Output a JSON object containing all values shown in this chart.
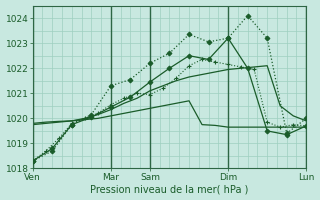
{
  "bg_color": "#c8e8e0",
  "grid_color": "#9ecfbf",
  "line_color": "#1a5c2a",
  "xlabel": "Pression niveau de la mer( hPa )",
  "ylim": [
    1018,
    1024.5
  ],
  "yticks": [
    1018,
    1019,
    1020,
    1021,
    1022,
    1023,
    1024
  ],
  "xtick_labels": [
    "Ven",
    "Mar",
    "Sam",
    "Dim",
    "Lun"
  ],
  "xtick_positions": [
    0,
    24,
    36,
    60,
    84
  ],
  "day_vlines": [
    24,
    36,
    60,
    84
  ],
  "s1_x": [
    0,
    4,
    8,
    12,
    16,
    20,
    24,
    28,
    32,
    36,
    40,
    44,
    48,
    52,
    56,
    60,
    64,
    68,
    72,
    76,
    80,
    84
  ],
  "s1_y": [
    1018.3,
    1018.7,
    1019.2,
    1019.8,
    1020.0,
    1020.2,
    1020.55,
    1020.8,
    1021.0,
    1020.95,
    1021.2,
    1021.6,
    1022.1,
    1022.35,
    1022.25,
    1022.15,
    1022.05,
    1021.95,
    1019.85,
    1019.65,
    1019.75,
    1019.7
  ],
  "s2_x": [
    0,
    4,
    8,
    12,
    16,
    20,
    24,
    28,
    32,
    36,
    40,
    44,
    48,
    52,
    56,
    60,
    64,
    68,
    72,
    76,
    80,
    84
  ],
  "s2_y": [
    1019.75,
    1019.8,
    1019.85,
    1019.9,
    1019.95,
    1020.0,
    1020.1,
    1020.2,
    1020.3,
    1020.4,
    1020.5,
    1020.6,
    1020.7,
    1019.75,
    1019.72,
    1019.65,
    1019.65,
    1019.65,
    1019.65,
    1019.65,
    1019.65,
    1019.65
  ],
  "s3_x": [
    0,
    4,
    8,
    12,
    16,
    20,
    24,
    28,
    32,
    36,
    40,
    44,
    48,
    52,
    56,
    60,
    64,
    68,
    72,
    76,
    80,
    84
  ],
  "s3_y": [
    1019.8,
    1019.85,
    1019.88,
    1019.9,
    1020.0,
    1020.15,
    1020.35,
    1020.6,
    1020.8,
    1021.1,
    1021.3,
    1021.5,
    1021.65,
    1021.75,
    1021.85,
    1021.95,
    1022.0,
    1022.05,
    1022.1,
    1020.5,
    1020.1,
    1019.9
  ],
  "s4_x": [
    0,
    6,
    12,
    18,
    24,
    30,
    36,
    42,
    48,
    54,
    60,
    66,
    72,
    78,
    84
  ],
  "s4_y": [
    1018.3,
    1018.8,
    1019.75,
    1020.05,
    1020.45,
    1020.85,
    1021.45,
    1022.0,
    1022.5,
    1022.35,
    1023.2,
    1022.0,
    1019.5,
    1019.35,
    1019.7
  ],
  "s5_x": [
    0,
    6,
    12,
    18,
    24,
    30,
    36,
    42,
    48,
    54,
    60,
    66,
    72,
    78,
    84
  ],
  "s5_y": [
    1018.3,
    1018.7,
    1019.75,
    1020.15,
    1021.3,
    1021.55,
    1022.2,
    1022.6,
    1023.35,
    1023.05,
    1023.2,
    1024.1,
    1023.2,
    1019.4,
    1020.0
  ]
}
